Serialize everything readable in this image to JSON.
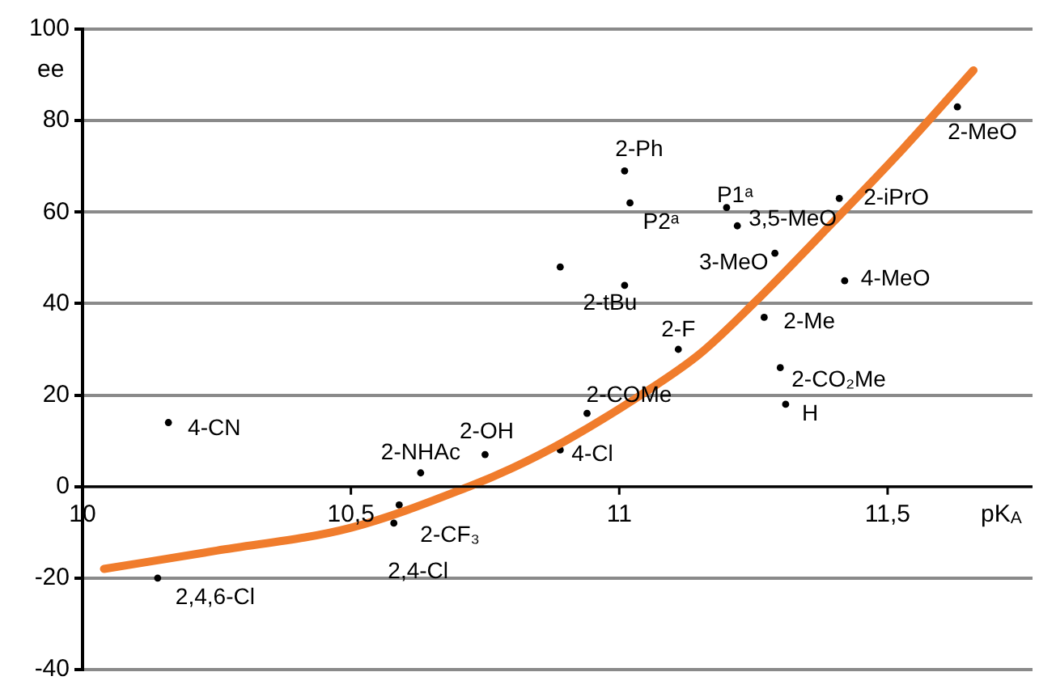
{
  "chart_data": {
    "type": "scatter",
    "xlabel": "pK$_{A}$",
    "ylabel": "ee",
    "xlim": [
      10,
      11.77
    ],
    "ylim": [
      -40,
      100
    ],
    "xticks": [
      10,
      {
        "value": 10.5,
        "label": "10,5"
      },
      11,
      {
        "value": 11.5,
        "label": "11,5"
      }
    ],
    "yticks": [
      -40,
      -20,
      0,
      20,
      40,
      60,
      80,
      100
    ],
    "grid": "y",
    "legend": false,
    "series": [
      {
        "marker": "circle",
        "color": "#000000",
        "x": [
          10.16,
          10.14,
          10.63,
          10.59,
          10.58,
          10.75,
          10.89,
          10.94,
          11.11,
          11.3,
          11.31,
          11.27,
          11.42,
          11.29,
          11.01,
          10.89,
          11.01,
          11.02,
          11.2,
          11.22,
          11.41,
          11.63
        ],
        "values": [
          14,
          -20,
          3,
          -4,
          -8,
          7,
          8,
          16,
          30,
          26,
          18,
          37,
          45,
          51,
          44,
          48,
          69,
          62,
          61,
          57,
          63,
          83
        ]
      },
      {
        "type": "line",
        "color": "#f07c2c",
        "x": [
          10.04,
          10.25,
          10.5,
          10.72,
          10.8,
          10.9,
          11.04,
          11.15,
          11.25,
          11.4,
          11.53,
          11.66
        ],
        "values": [
          -18,
          -14,
          -9,
          0,
          4,
          10,
          20,
          29,
          40,
          58,
          74,
          91
        ]
      }
    ],
    "annotations": [
      {
        "text": "4-CN",
        "x": 10.16,
        "y": 14
      },
      {
        "text": "2,4,6-Cl",
        "x": 10.14,
        "y": -20
      },
      {
        "text": "2-NHAc",
        "x": 10.63,
        "y": 3
      },
      {
        "text": "2-CF₃",
        "x": 10.59,
        "y": -4
      },
      {
        "text": "2,4-Cl",
        "x": 10.58,
        "y": -8
      },
      {
        "text": "2-OH",
        "x": 10.75,
        "y": 7
      },
      {
        "text": "4-Cl",
        "x": 10.89,
        "y": 8
      },
      {
        "text": "2-COMe",
        "x": 10.94,
        "y": 16
      },
      {
        "text": "2-F",
        "x": 11.11,
        "y": 30
      },
      {
        "text": "2-CO₂Me",
        "x": 11.3,
        "y": 26
      },
      {
        "text": "H",
        "x": 11.31,
        "y": 18
      },
      {
        "text": "2-Me",
        "x": 11.27,
        "y": 37
      },
      {
        "text": "4-MeO",
        "x": 11.42,
        "y": 45
      },
      {
        "text": "3-MeO",
        "x": 11.29,
        "y": 51
      },
      {
        "text": "2-tBu",
        "x": 11.01,
        "y": 44
      },
      {
        "text": "2-Ph",
        "x": 11.01,
        "y": 69
      },
      {
        "text": "P2ᵃ",
        "x": 11.02,
        "y": 62
      },
      {
        "text": "P1ᵃ",
        "x": 11.2,
        "y": 61
      },
      {
        "text": "3,5-MeO",
        "x": 11.22,
        "y": 57
      },
      {
        "text": "2-iPrO",
        "x": 11.41,
        "y": 63
      },
      {
        "text": "2-MeO",
        "x": 11.63,
        "y": 83
      }
    ]
  }
}
